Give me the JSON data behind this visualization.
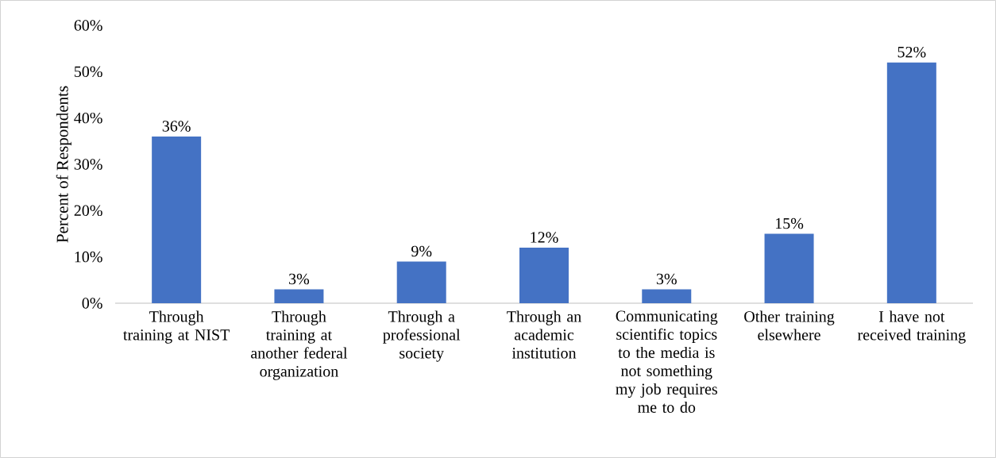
{
  "chart_data": {
    "type": "bar",
    "ylabel": "Percent of Respondents",
    "categories": [
      "Through training at NIST",
      "Through training at another federal organization",
      "Through a professional society",
      "Through an academic institution",
      "Communicating scientific topics to the media is not something my job requires me to do",
      "Other training elsewhere",
      "I have not received training"
    ],
    "values": [
      36,
      3,
      9,
      12,
      3,
      15,
      52
    ],
    "value_labels": [
      "36%",
      "3%",
      "9%",
      "12%",
      "3%",
      "15%",
      "52%"
    ],
    "color": "#4472c4",
    "ylim": [
      0,
      60
    ],
    "yticks": [
      {
        "value": 0,
        "label": "0%"
      },
      {
        "value": 10,
        "label": "10%"
      },
      {
        "value": 20,
        "label": "20%"
      },
      {
        "value": 30,
        "label": "30%"
      },
      {
        "value": 40,
        "label": "40%"
      },
      {
        "value": 50,
        "label": "50%"
      },
      {
        "value": 60,
        "label": "60%"
      }
    ],
    "grid": false
  }
}
